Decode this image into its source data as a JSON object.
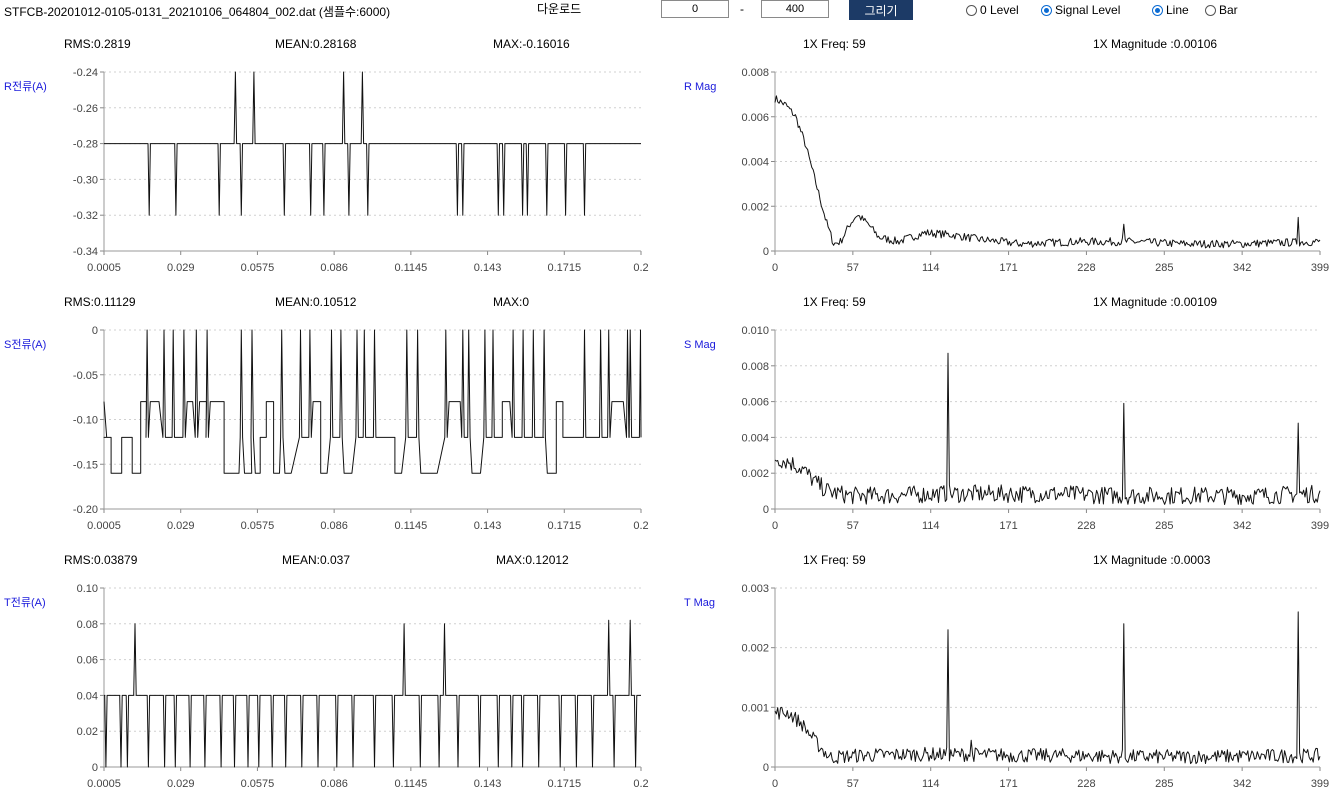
{
  "header": {
    "file_title": "STFCB-20201012-0105-0131_20210106_064804_002.dat (샘플수:6000)",
    "download_label": "다운로드",
    "range_start": "0",
    "range_sep": "-",
    "range_end": "400",
    "draw_button_label": "그리기",
    "level_options": [
      {
        "label": "0 Level",
        "checked": false
      },
      {
        "label": "Signal Level",
        "checked": true
      }
    ],
    "type_options": [
      {
        "label": "Line",
        "checked": true
      },
      {
        "label": "Bar",
        "checked": false
      }
    ]
  },
  "chart_data": [
    {
      "type": "line",
      "kind": "time",
      "key": "r_time",
      "ylabel": "R전류(A)",
      "stats": [
        "RMS:0.2819",
        "MEAN:0.28168",
        "MAX:-0.16016"
      ],
      "ylim": [
        -0.34,
        -0.24
      ],
      "yticks": [
        "-0.24",
        "-0.26",
        "-0.28",
        "-0.30",
        "-0.32",
        "-0.34"
      ],
      "xlim": [
        0.0005,
        0.2
      ],
      "xticks": [
        "0.0005",
        "0.029",
        "0.0575",
        "0.086",
        "0.1145",
        "0.143",
        "0.1715",
        "0.2"
      ],
      "baseline": -0.28,
      "spikes": [
        [
          0.0173,
          -0.32
        ],
        [
          0.0272,
          -0.32
        ],
        [
          0.0433,
          -0.32
        ],
        [
          0.0493,
          -0.24
        ],
        [
          0.0515,
          -0.32
        ],
        [
          0.0562,
          -0.24
        ],
        [
          0.0675,
          -0.32
        ],
        [
          0.0773,
          -0.32
        ],
        [
          0.0822,
          -0.32
        ],
        [
          0.0895,
          -0.24
        ],
        [
          0.0915,
          -0.32
        ],
        [
          0.0965,
          -0.24
        ],
        [
          0.0985,
          -0.32
        ],
        [
          0.1318,
          -0.32
        ],
        [
          0.1338,
          -0.32
        ],
        [
          0.147,
          -0.32
        ],
        [
          0.149,
          -0.32
        ],
        [
          0.156,
          -0.32
        ],
        [
          0.1578,
          -0.32
        ],
        [
          0.165,
          -0.32
        ],
        [
          0.172,
          -0.32
        ],
        [
          0.179,
          -0.32
        ]
      ],
      "grid": true
    },
    {
      "type": "line",
      "kind": "fft",
      "key": "r_mag",
      "ylabel": "R Mag",
      "stats": [
        "1X Freq: 59",
        "1X Magnitude :0.00106"
      ],
      "ylim": [
        0,
        0.008
      ],
      "yticks": [
        "0.008",
        "0.006",
        "0.004",
        "0.002",
        "0"
      ],
      "xlim": [
        0,
        399
      ],
      "xticks": [
        "0",
        "57",
        "114",
        "171",
        "228",
        "285",
        "342",
        "399"
      ],
      "envelope": [
        [
          0,
          0.0068
        ],
        [
          8,
          0.0065
        ],
        [
          15,
          0.006
        ],
        [
          22,
          0.0048
        ],
        [
          30,
          0.003
        ],
        [
          38,
          0.0012
        ],
        [
          43,
          0.0003
        ],
        [
          48,
          0.0004
        ],
        [
          55,
          0.0012
        ],
        [
          60,
          0.0016
        ],
        [
          68,
          0.0012
        ],
        [
          76,
          0.0006
        ],
        [
          90,
          0.0004
        ],
        [
          110,
          0.0008
        ],
        [
          130,
          0.0007
        ],
        [
          150,
          0.0005
        ],
        [
          180,
          0.0003
        ],
        [
          220,
          0.0004
        ],
        [
          260,
          0.0004
        ],
        [
          300,
          0.0003
        ],
        [
          340,
          0.0003
        ],
        [
          399,
          0.0004
        ]
      ],
      "noise": 0.00018,
      "peaks": [
        [
          255,
          0.0012
        ],
        [
          383,
          0.0015
        ]
      ],
      "grid": true
    },
    {
      "type": "line",
      "kind": "time",
      "key": "s_time",
      "ylabel": "S전류(A)",
      "stats": [
        "RMS:0.11129",
        "MEAN:0.10512",
        "MAX:0"
      ],
      "ylim": [
        -0.2,
        0
      ],
      "yticks": [
        "0",
        "-0.05",
        "-0.10",
        "-0.15",
        "-0.20"
      ],
      "xlim": [
        0.0005,
        0.2
      ],
      "xticks": [
        "0.0005",
        "0.029",
        "0.0575",
        "0.086",
        "0.1145",
        "0.143",
        "0.1715",
        "0.2"
      ],
      "levels": [
        0,
        -0.08,
        -0.12,
        -0.16
      ],
      "zero_spikes": [
        0.0165,
        0.0228,
        0.0262,
        0.0302,
        0.0348,
        0.0388,
        0.0515,
        0.0555,
        0.0665,
        0.0735,
        0.077,
        0.085,
        0.0885,
        0.0945,
        0.0972,
        0.101,
        0.113,
        0.117,
        0.1275,
        0.1338,
        0.136,
        0.142,
        0.145,
        0.1525,
        0.1562,
        0.16,
        0.164,
        0.179,
        0.185,
        0.188,
        0.195,
        0.196,
        0.1998
      ],
      "grid": true
    },
    {
      "type": "line",
      "kind": "fft",
      "key": "s_mag",
      "ylabel": "S Mag",
      "stats": [
        "1X Freq: 59",
        "1X Magnitude :0.00109"
      ],
      "ylim": [
        0,
        0.01
      ],
      "yticks": [
        "0.010",
        "0.008",
        "0.006",
        "0.004",
        "0.002",
        "0"
      ],
      "xlim": [
        0,
        399
      ],
      "xticks": [
        "0",
        "57",
        "114",
        "171",
        "228",
        "285",
        "342",
        "399"
      ],
      "envelope": [
        [
          0,
          0.0028
        ],
        [
          10,
          0.0026
        ],
        [
          20,
          0.0022
        ],
        [
          30,
          0.0014
        ],
        [
          40,
          0.0009
        ],
        [
          55,
          0.0007
        ],
        [
          80,
          0.0007
        ],
        [
          120,
          0.0008
        ],
        [
          160,
          0.0008
        ],
        [
          200,
          0.0008
        ],
        [
          250,
          0.0007
        ],
        [
          300,
          0.0007
        ],
        [
          350,
          0.0007
        ],
        [
          399,
          0.0008
        ]
      ],
      "noise": 0.0005,
      "peaks": [
        [
          127,
          0.0087
        ],
        [
          255,
          0.0059
        ],
        [
          383,
          0.0048
        ]
      ],
      "grid": true
    },
    {
      "type": "line",
      "kind": "time",
      "key": "t_time",
      "ylabel": "T전류(A)",
      "stats": [
        "RMS:0.03879",
        "MEAN:0.037",
        "MAX:0.12012"
      ],
      "ylim": [
        0,
        0.1
      ],
      "yticks": [
        "0.10",
        "0.08",
        "0.06",
        "0.04",
        "0.02",
        "0"
      ],
      "xlim": [
        0.0005,
        0.2
      ],
      "xticks": [
        "0.0005",
        "0.029",
        "0.0575",
        "0.086",
        "0.1145",
        "0.143",
        "0.1715",
        "0.2"
      ],
      "baseline": 0.04,
      "spikes": [
        [
          0.0012,
          0
        ],
        [
          0.0068,
          0
        ],
        [
          0.0092,
          0
        ],
        [
          0.012,
          0.08
        ],
        [
          0.017,
          0
        ],
        [
          0.023,
          0
        ],
        [
          0.027,
          0
        ],
        [
          0.0325,
          0
        ],
        [
          0.038,
          0
        ],
        [
          0.044,
          0
        ],
        [
          0.049,
          0
        ],
        [
          0.054,
          0
        ],
        [
          0.058,
          0
        ],
        [
          0.063,
          0
        ],
        [
          0.068,
          0
        ],
        [
          0.074,
          0
        ],
        [
          0.08,
          0
        ],
        [
          0.087,
          0
        ],
        [
          0.093,
          0
        ],
        [
          0.101,
          0
        ],
        [
          0.108,
          0
        ],
        [
          0.112,
          0.08
        ],
        [
          0.118,
          0
        ],
        [
          0.125,
          0
        ],
        [
          0.127,
          0.08
        ],
        [
          0.132,
          0
        ],
        [
          0.14,
          0
        ],
        [
          0.147,
          0
        ],
        [
          0.152,
          0
        ],
        [
          0.156,
          0
        ],
        [
          0.162,
          0
        ],
        [
          0.17,
          0
        ],
        [
          0.176,
          0
        ],
        [
          0.182,
          0
        ],
        [
          0.188,
          0.082
        ],
        [
          0.19,
          0
        ],
        [
          0.196,
          0.082
        ],
        [
          0.198,
          0
        ]
      ],
      "grid": true
    },
    {
      "type": "line",
      "kind": "fft",
      "key": "t_mag",
      "ylabel": "T Mag",
      "stats": [
        "1X Freq: 59",
        "1X Magnitude :0.0003"
      ],
      "ylim": [
        0,
        0.003
      ],
      "yticks": [
        "0.003",
        "0.002",
        "0.001",
        "0"
      ],
      "xlim": [
        0,
        399
      ],
      "xticks": [
        "0",
        "57",
        "114",
        "171",
        "228",
        "285",
        "342",
        "399"
      ],
      "envelope": [
        [
          0,
          0.0009
        ],
        [
          10,
          0.0009
        ],
        [
          20,
          0.0007
        ],
        [
          30,
          0.0004
        ],
        [
          40,
          0.00015
        ],
        [
          60,
          0.00018
        ],
        [
          100,
          0.0002
        ],
        [
          140,
          0.0002
        ],
        [
          180,
          0.00018
        ],
        [
          220,
          0.00018
        ],
        [
          260,
          0.00016
        ],
        [
          300,
          0.00016
        ],
        [
          350,
          0.00017
        ],
        [
          399,
          0.00018
        ]
      ],
      "noise": 0.00012,
      "peaks": [
        [
          127,
          0.0023
        ],
        [
          144,
          0.00045
        ],
        [
          255,
          0.0024
        ],
        [
          383,
          0.0026
        ]
      ],
      "grid": true
    }
  ]
}
